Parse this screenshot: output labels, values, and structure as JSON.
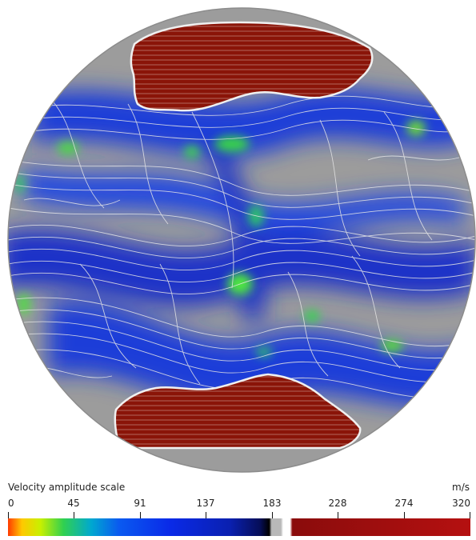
{
  "colorbar": {
    "title": "Velocity amplitude scale",
    "unit": "m/s",
    "ticks": [
      "0",
      "45",
      "91",
      "137",
      "183",
      "228",
      "274",
      "320"
    ],
    "min": 0,
    "max": 320
  },
  "colors": {
    "background_gray": "#9c9c9c",
    "flow_blue": "#1f3cd8",
    "flow_green": "#3fe030",
    "blade_red": "#8a1408",
    "streamline": "#e6e6e6"
  }
}
